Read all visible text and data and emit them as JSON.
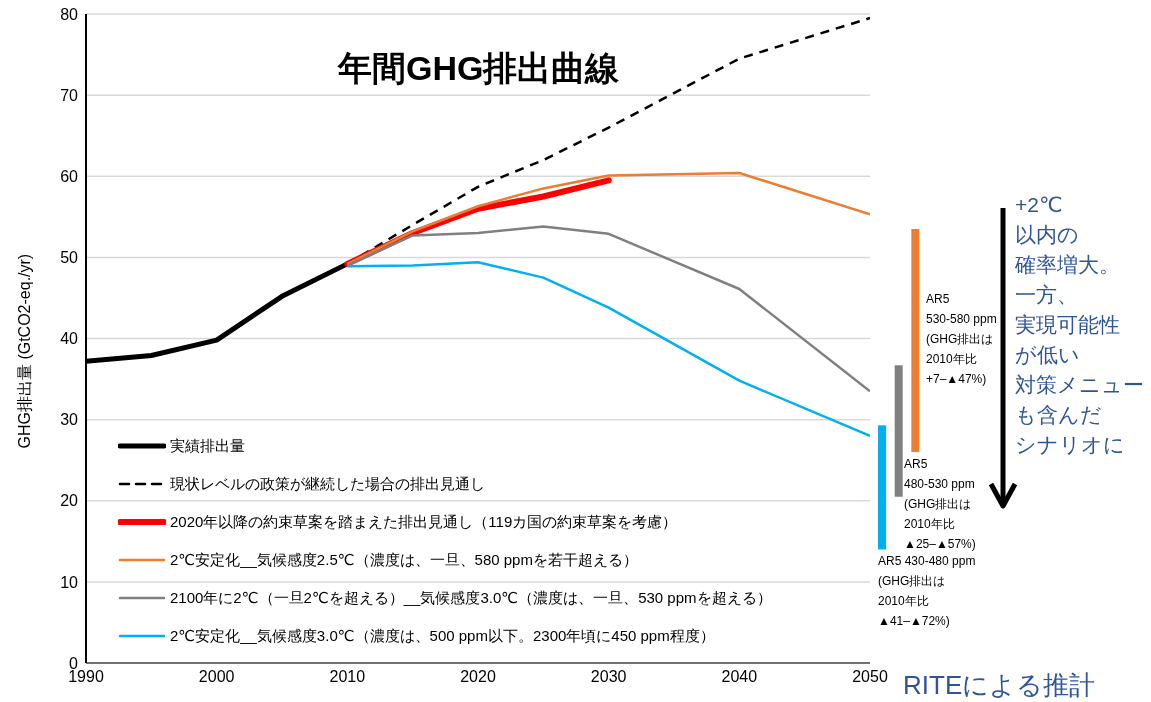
{
  "chart_data": [
    {
      "type": "line",
      "title": "年間GHG排出曲線",
      "ylabel": "GHG排出量 (GtCO2-eq./yr)",
      "x": [
        1990,
        1995,
        2000,
        2005,
        2010,
        2015,
        2020,
        2025,
        2030,
        2040,
        2050
      ],
      "series": [
        {
          "name": "実績排出量",
          "color": "#000000",
          "values": [
            37.2,
            37.9,
            39.8,
            45.2,
            49.2,
            null,
            null,
            null,
            null,
            null,
            null
          ]
        },
        {
          "name": "現状レベルの政策が継続した場合の排出見通し",
          "color": "#000000",
          "line_style": "dashed",
          "values": [
            null,
            null,
            null,
            null,
            49.2,
            54,
            58.7,
            62,
            66,
            74.5,
            79.5
          ]
        },
        {
          "name": "2020年以降の約束草案を踏まえた排出見通し（119カ国の約束草案を考慮）",
          "color": "#ff0000",
          "values": [
            null,
            null,
            null,
            null,
            49.2,
            53,
            56,
            57.5,
            59.5,
            null,
            null
          ]
        },
        {
          "name": "2℃安定化__気候感度2.5℃（濃度は、一旦、580 ppmを若干超える）",
          "color": "#ed7d31",
          "values": [
            null,
            null,
            null,
            null,
            49.2,
            53.2,
            56.3,
            58.5,
            60.1,
            60.4,
            55.3
          ]
        },
        {
          "name": "2100年に2℃（一旦2℃を超える）__気候感度3.0℃（濃度は、一旦、530 ppmを超える）",
          "color": "#808080",
          "values": [
            null,
            null,
            null,
            null,
            49,
            52.7,
            53,
            53.8,
            52.9,
            46.1,
            33.5
          ]
        },
        {
          "name": "2℃安定化__気候感度3.0℃（濃度は、500 ppm以下。2300年頃に450 ppm程度）",
          "color": "#00b0f0",
          "values": [
            null,
            null,
            null,
            null,
            48.9,
            49,
            49.4,
            47.5,
            43.8,
            34.8,
            28
          ]
        }
      ],
      "xlim": [
        1990,
        2050
      ],
      "xticks": [
        1990,
        2000,
        2010,
        2020,
        2030,
        2040,
        2050
      ],
      "ylim": [
        0,
        80
      ],
      "yticks": [
        0,
        10,
        20,
        30,
        40,
        50,
        60,
        70,
        80
      ],
      "grid": "y",
      "legend": "bottom left",
      "annotations": [
        "RITEによる推計"
      ]
    },
    {
      "type": "bar",
      "categories": [
        null,
        null,
        null
      ],
      "base": [
        14,
        20.5,
        26
      ],
      "values": [
        15.3,
        16.2,
        27.5
      ],
      "colors": [
        "#00b0f0",
        "#808080",
        "#ed7d31"
      ],
      "ylim": [
        0,
        80
      ],
      "tick_labels": false,
      "annotations": [
        "AR5 430-480 ppm\n(GHG排出は\n2010年比\n▲41–▲72%)",
        "AR5\n480-530 ppm\n(GHG排出は\n2010年比\n▲25–▲57%)",
        "AR5\n530-580 ppm\n(GHG排出は\n2010年比\n+7–▲47%)",
        "+2℃",
        "以内の",
        "確率増大。",
        "一方、",
        "実現可能性",
        "が低い",
        "対策メニュー",
        "も含んだ",
        "シナリオに"
      ]
    }
  ]
}
